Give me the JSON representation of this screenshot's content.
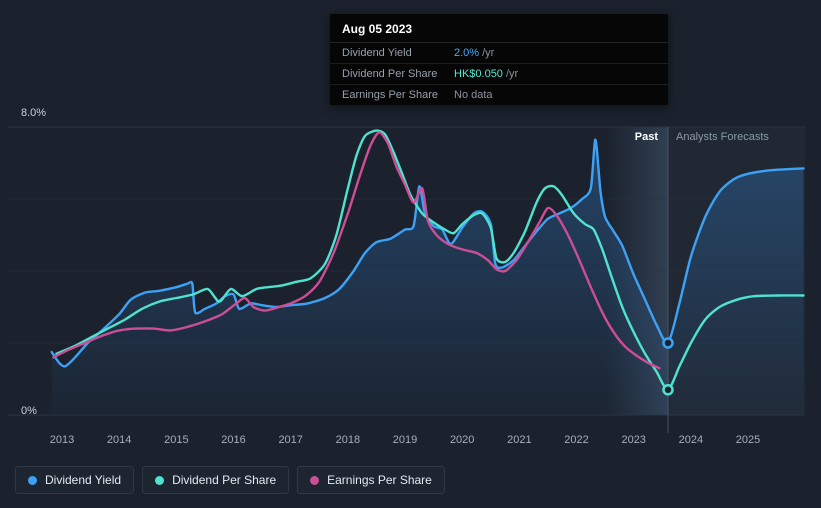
{
  "colors": {
    "background": "#1b222d",
    "dividend_yield": "#3da1f5",
    "dividend_per_share": "#4fe3cf",
    "earnings_per_share": "#cc4e96",
    "gridline": "#2b3342",
    "divider": "#4a5568"
  },
  "tooltip": {
    "date": "Aug 05 2023",
    "rows": [
      {
        "label": "Dividend Yield",
        "value": "2.0%",
        "unit": "/yr",
        "color": "#3da1f5"
      },
      {
        "label": "Dividend Per Share",
        "value": "HK$0.050",
        "unit": "/yr",
        "color": "#4fe3cf"
      },
      {
        "label": "Earnings Per Share",
        "value": "No data",
        "unit": "",
        "color": "#8b939e"
      }
    ]
  },
  "chart": {
    "y_axis": {
      "top_label": "8.0%",
      "bottom_label": "0%"
    },
    "regions": {
      "past_label": "Past",
      "forecast_label": "Analysts Forecasts"
    }
  },
  "chart_data": {
    "type": "line",
    "title": "Dividend history and forecast",
    "y_axis": {
      "min": 0,
      "max": 8,
      "top_label": "8.0%",
      "bottom_label": "0%",
      "unit": "%"
    },
    "x_ticks": [
      "2013",
      "2014",
      "2015",
      "2016",
      "2017",
      "2018",
      "2019",
      "2020",
      "2021",
      "2022",
      "2023",
      "2024",
      "2025"
    ],
    "x_domain": [
      2012.75,
      2026.0
    ],
    "divider_year": 2023.6,
    "band_start_year": 2022.5,
    "regions": {
      "past_label": "Past",
      "forecast_label": "Analysts Forecasts"
    },
    "legend_position": "bottom-left",
    "series": [
      {
        "name": "Dividend Yield",
        "color": "#3da1f5",
        "area": true,
        "marker": [
          2023.6,
          2.0
        ],
        "marker_value": "2.0% /yr",
        "points": [
          [
            2012.82,
            1.75
          ],
          [
            2012.95,
            1.45
          ],
          [
            2013.05,
            1.35
          ],
          [
            2013.2,
            1.55
          ],
          [
            2013.45,
            2.0
          ],
          [
            2013.7,
            2.35
          ],
          [
            2014.0,
            2.8
          ],
          [
            2014.2,
            3.2
          ],
          [
            2014.45,
            3.4
          ],
          [
            2014.7,
            3.45
          ],
          [
            2015.0,
            3.55
          ],
          [
            2015.2,
            3.65
          ],
          [
            2015.28,
            3.65
          ],
          [
            2015.33,
            2.85
          ],
          [
            2015.5,
            2.95
          ],
          [
            2015.7,
            3.1
          ],
          [
            2015.85,
            3.3
          ],
          [
            2016.0,
            3.35
          ],
          [
            2016.1,
            2.95
          ],
          [
            2016.3,
            3.1
          ],
          [
            2016.5,
            3.05
          ],
          [
            2016.75,
            3.0
          ],
          [
            2017.0,
            3.05
          ],
          [
            2017.3,
            3.1
          ],
          [
            2017.6,
            3.25
          ],
          [
            2017.85,
            3.5
          ],
          [
            2018.1,
            4.0
          ],
          [
            2018.3,
            4.5
          ],
          [
            2018.5,
            4.8
          ],
          [
            2018.75,
            4.9
          ],
          [
            2019.0,
            5.15
          ],
          [
            2019.15,
            5.25
          ],
          [
            2019.25,
            6.35
          ],
          [
            2019.35,
            5.6
          ],
          [
            2019.5,
            5.25
          ],
          [
            2019.65,
            5.15
          ],
          [
            2019.8,
            4.75
          ],
          [
            2020.0,
            5.2
          ],
          [
            2020.2,
            5.6
          ],
          [
            2020.35,
            5.65
          ],
          [
            2020.5,
            5.3
          ],
          [
            2020.58,
            4.2
          ],
          [
            2020.7,
            4.1
          ],
          [
            2020.9,
            4.3
          ],
          [
            2021.1,
            4.7
          ],
          [
            2021.3,
            5.1
          ],
          [
            2021.5,
            5.45
          ],
          [
            2021.7,
            5.6
          ],
          [
            2021.9,
            5.75
          ],
          [
            2022.1,
            6.0
          ],
          [
            2022.25,
            6.3
          ],
          [
            2022.33,
            7.65
          ],
          [
            2022.42,
            6.2
          ],
          [
            2022.5,
            5.5
          ],
          [
            2022.65,
            5.1
          ],
          [
            2022.8,
            4.7
          ],
          [
            2023.0,
            3.9
          ],
          [
            2023.2,
            3.2
          ],
          [
            2023.4,
            2.5
          ],
          [
            2023.6,
            2.0
          ],
          [
            2023.8,
            3.1
          ],
          [
            2024.0,
            4.4
          ],
          [
            2024.25,
            5.5
          ],
          [
            2024.5,
            6.2
          ],
          [
            2024.75,
            6.55
          ],
          [
            2025.0,
            6.7
          ],
          [
            2025.4,
            6.8
          ],
          [
            2025.97,
            6.85
          ]
        ]
      },
      {
        "name": "Dividend Per Share",
        "color": "#4fe3cf",
        "area": false,
        "marker": [
          2023.6,
          0.7
        ],
        "marker_value": "HK$0.050 /yr",
        "points": [
          [
            2012.9,
            1.7
          ],
          [
            2013.2,
            1.9
          ],
          [
            2013.5,
            2.15
          ],
          [
            2013.8,
            2.4
          ],
          [
            2014.1,
            2.65
          ],
          [
            2014.4,
            2.95
          ],
          [
            2014.7,
            3.15
          ],
          [
            2015.0,
            3.25
          ],
          [
            2015.3,
            3.35
          ],
          [
            2015.55,
            3.5
          ],
          [
            2015.75,
            3.15
          ],
          [
            2015.95,
            3.5
          ],
          [
            2016.15,
            3.3
          ],
          [
            2016.4,
            3.5
          ],
          [
            2016.6,
            3.55
          ],
          [
            2016.85,
            3.6
          ],
          [
            2017.1,
            3.7
          ],
          [
            2017.35,
            3.8
          ],
          [
            2017.6,
            4.2
          ],
          [
            2017.8,
            5.0
          ],
          [
            2018.0,
            6.3
          ],
          [
            2018.15,
            7.2
          ],
          [
            2018.3,
            7.75
          ],
          [
            2018.5,
            7.9
          ],
          [
            2018.65,
            7.8
          ],
          [
            2018.8,
            7.3
          ],
          [
            2018.95,
            6.7
          ],
          [
            2019.1,
            6.1
          ],
          [
            2019.3,
            5.6
          ],
          [
            2019.5,
            5.35
          ],
          [
            2019.7,
            5.15
          ],
          [
            2019.85,
            5.05
          ],
          [
            2020.0,
            5.3
          ],
          [
            2020.2,
            5.55
          ],
          [
            2020.35,
            5.6
          ],
          [
            2020.5,
            5.2
          ],
          [
            2020.6,
            4.35
          ],
          [
            2020.75,
            4.25
          ],
          [
            2020.9,
            4.5
          ],
          [
            2021.1,
            5.1
          ],
          [
            2021.3,
            5.9
          ],
          [
            2021.45,
            6.3
          ],
          [
            2021.6,
            6.35
          ],
          [
            2021.75,
            6.1
          ],
          [
            2021.95,
            5.6
          ],
          [
            2022.15,
            5.3
          ],
          [
            2022.3,
            5.15
          ],
          [
            2022.45,
            4.6
          ],
          [
            2022.6,
            3.9
          ],
          [
            2022.8,
            3.0
          ],
          [
            2023.0,
            2.3
          ],
          [
            2023.2,
            1.7
          ],
          [
            2023.4,
            1.2
          ],
          [
            2023.6,
            0.7
          ],
          [
            2023.8,
            1.35
          ],
          [
            2024.0,
            2.0
          ],
          [
            2024.25,
            2.65
          ],
          [
            2024.5,
            3.0
          ],
          [
            2024.8,
            3.2
          ],
          [
            2025.1,
            3.3
          ],
          [
            2025.5,
            3.32
          ],
          [
            2025.97,
            3.32
          ]
        ]
      },
      {
        "name": "Earnings Per Share",
        "color": "#cc4e96",
        "area": false,
        "marker": null,
        "marker_value": "No data",
        "points": [
          [
            2012.85,
            1.6
          ],
          [
            2013.1,
            1.8
          ],
          [
            2013.4,
            2.0
          ],
          [
            2013.7,
            2.2
          ],
          [
            2014.0,
            2.35
          ],
          [
            2014.3,
            2.4
          ],
          [
            2014.6,
            2.4
          ],
          [
            2014.9,
            2.35
          ],
          [
            2015.2,
            2.45
          ],
          [
            2015.5,
            2.6
          ],
          [
            2015.8,
            2.8
          ],
          [
            2016.05,
            3.1
          ],
          [
            2016.2,
            3.25
          ],
          [
            2016.35,
            3.0
          ],
          [
            2016.55,
            2.9
          ],
          [
            2016.8,
            3.0
          ],
          [
            2017.0,
            3.1
          ],
          [
            2017.25,
            3.3
          ],
          [
            2017.5,
            3.7
          ],
          [
            2017.75,
            4.5
          ],
          [
            2018.0,
            5.6
          ],
          [
            2018.2,
            6.6
          ],
          [
            2018.4,
            7.5
          ],
          [
            2018.55,
            7.85
          ],
          [
            2018.7,
            7.55
          ],
          [
            2018.85,
            6.9
          ],
          [
            2019.0,
            6.4
          ],
          [
            2019.15,
            5.9
          ],
          [
            2019.3,
            6.3
          ],
          [
            2019.4,
            5.4
          ],
          [
            2019.55,
            5.0
          ],
          [
            2019.75,
            4.75
          ],
          [
            2020.0,
            4.6
          ],
          [
            2020.25,
            4.5
          ],
          [
            2020.45,
            4.3
          ],
          [
            2020.6,
            4.05
          ],
          [
            2020.75,
            4.0
          ],
          [
            2020.95,
            4.3
          ],
          [
            2021.15,
            4.8
          ],
          [
            2021.35,
            5.35
          ],
          [
            2021.5,
            5.75
          ],
          [
            2021.65,
            5.55
          ],
          [
            2021.85,
            5.0
          ],
          [
            2022.05,
            4.3
          ],
          [
            2022.25,
            3.55
          ],
          [
            2022.45,
            2.85
          ],
          [
            2022.65,
            2.3
          ],
          [
            2022.85,
            1.9
          ],
          [
            2023.05,
            1.65
          ],
          [
            2023.25,
            1.45
          ],
          [
            2023.45,
            1.3
          ]
        ]
      }
    ]
  },
  "legend": {
    "items": [
      {
        "label": "Dividend Yield",
        "color": "#3da1f5"
      },
      {
        "label": "Dividend Per Share",
        "color": "#4fe3cf"
      },
      {
        "label": "Earnings Per Share",
        "color": "#cc4e96"
      }
    ]
  }
}
